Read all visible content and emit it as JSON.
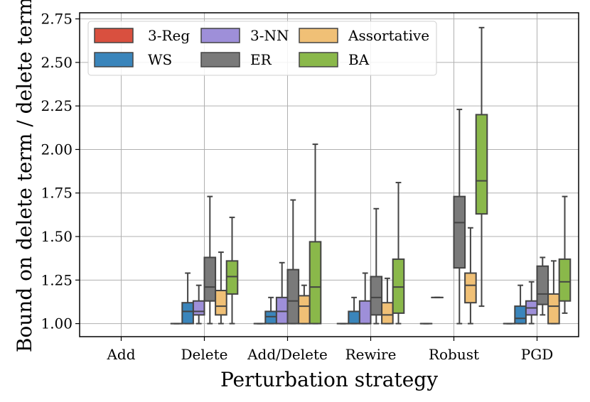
{
  "chart_data": {
    "type": "box",
    "xlabel": "Perturbation strategy",
    "ylabel": "Bound on delete term / delete term",
    "ylim": [
      0.925,
      2.785
    ],
    "yticks": [
      "1.00",
      "1.25",
      "1.50",
      "1.75",
      "2.00",
      "2.25",
      "2.50",
      "2.75"
    ],
    "categories": [
      "Add",
      "Delete",
      "Add/Delete",
      "Rewire",
      "Robust",
      "PGD"
    ],
    "grid": true,
    "legend_position": "top-left",
    "series": [
      {
        "name": "3-Reg",
        "color": "#d9503f",
        "boxes": [
          null,
          {
            "min": 1.0,
            "q1": 1.0,
            "median": 1.0,
            "q3": 1.0,
            "max": 1.0
          },
          {
            "min": 1.0,
            "q1": 1.0,
            "median": 1.0,
            "q3": 1.0,
            "max": 1.0
          },
          {
            "min": 1.0,
            "q1": 1.0,
            "median": 1.0,
            "q3": 1.0,
            "max": 1.0
          },
          {
            "min": 1.0,
            "q1": 1.0,
            "median": 1.0,
            "q3": 1.0,
            "max": 1.0
          },
          {
            "min": 1.0,
            "q1": 1.0,
            "median": 1.0,
            "q3": 1.0,
            "max": 1.0
          }
        ]
      },
      {
        "name": "WS",
        "color": "#3a85bb",
        "boxes": [
          null,
          {
            "min": 1.0,
            "q1": 1.0,
            "median": 1.07,
            "q3": 1.12,
            "max": 1.29
          },
          {
            "min": 1.0,
            "q1": 1.0,
            "median": 1.04,
            "q3": 1.07,
            "max": 1.15
          },
          {
            "min": 1.0,
            "q1": 1.0,
            "median": 1.0,
            "q3": 1.07,
            "max": 1.15
          },
          {
            "min": 1.15,
            "q1": 1.15,
            "median": 1.15,
            "q3": 1.15,
            "max": 1.15
          },
          {
            "min": 1.0,
            "q1": 1.0,
            "median": 1.03,
            "q3": 1.1,
            "max": 1.22
          }
        ]
      },
      {
        "name": "3-NN",
        "color": "#9e8fd9",
        "boxes": [
          null,
          {
            "min": 1.0,
            "q1": 1.05,
            "median": 1.07,
            "q3": 1.13,
            "max": 1.22
          },
          {
            "min": 1.0,
            "q1": 1.0,
            "median": 1.07,
            "q3": 1.15,
            "max": 1.35
          },
          {
            "min": 1.0,
            "q1": 1.0,
            "median": 1.0,
            "q3": 1.13,
            "max": 1.29
          },
          null,
          {
            "min": 1.0,
            "q1": 1.05,
            "median": 1.09,
            "q3": 1.13,
            "max": 1.24
          }
        ]
      },
      {
        "name": "ER",
        "color": "#7a7a7a",
        "boxes": [
          null,
          {
            "min": 1.0,
            "q1": 1.13,
            "median": 1.21,
            "q3": 1.38,
            "max": 1.73
          },
          {
            "min": 1.0,
            "q1": 1.0,
            "median": 1.13,
            "q3": 1.31,
            "max": 1.71
          },
          {
            "min": 1.0,
            "q1": 1.05,
            "median": 1.15,
            "q3": 1.27,
            "max": 1.66
          },
          {
            "min": 1.0,
            "q1": 1.32,
            "median": 1.58,
            "q3": 1.73,
            "max": 2.23
          },
          {
            "min": 1.05,
            "q1": 1.11,
            "median": 1.17,
            "q3": 1.33,
            "max": 1.38
          }
        ]
      },
      {
        "name": "Assortative",
        "color": "#f0c076",
        "boxes": [
          null,
          {
            "min": 1.0,
            "q1": 1.05,
            "median": 1.1,
            "q3": 1.19,
            "max": 1.41
          },
          {
            "min": 1.0,
            "q1": 1.0,
            "median": 1.1,
            "q3": 1.16,
            "max": 1.22
          },
          {
            "min": 1.0,
            "q1": 1.0,
            "median": 1.05,
            "q3": 1.12,
            "max": 1.26
          },
          {
            "min": 1.0,
            "q1": 1.12,
            "median": 1.22,
            "q3": 1.29,
            "max": 1.55
          },
          {
            "min": 1.0,
            "q1": 1.0,
            "median": 1.1,
            "q3": 1.17,
            "max": 1.36
          }
        ]
      },
      {
        "name": "BA",
        "color": "#8ab84a",
        "boxes": [
          null,
          {
            "min": 1.0,
            "q1": 1.17,
            "median": 1.27,
            "q3": 1.36,
            "max": 1.61
          },
          {
            "min": 1.0,
            "q1": 1.0,
            "median": 1.21,
            "q3": 1.47,
            "max": 2.03
          },
          {
            "min": 1.0,
            "q1": 1.06,
            "median": 1.21,
            "q3": 1.37,
            "max": 1.81
          },
          {
            "min": 1.1,
            "q1": 1.63,
            "median": 1.82,
            "q3": 2.2,
            "max": 2.7
          },
          {
            "min": 1.06,
            "q1": 1.13,
            "median": 1.24,
            "q3": 1.37,
            "max": 1.73
          }
        ]
      }
    ]
  }
}
